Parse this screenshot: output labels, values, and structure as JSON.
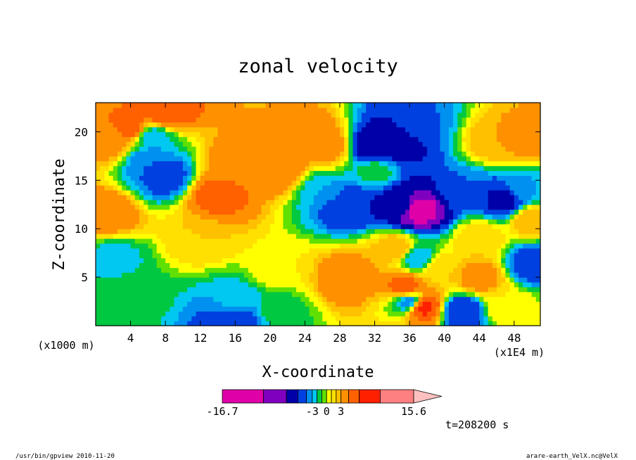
{
  "chart_data": {
    "type": "heatmap",
    "title": "zonal velocity",
    "xlabel": "X-coordinate",
    "ylabel": "Z-coordinate",
    "x_unit": "(x1E4 m)",
    "y_unit": "(x1000 m)",
    "x_ticks": [
      4,
      8,
      12,
      16,
      20,
      24,
      28,
      32,
      36,
      40,
      44,
      48
    ],
    "y_ticks": [
      5,
      10,
      15,
      20
    ],
    "xlim": [
      0,
      51
    ],
    "ylim": [
      0,
      23
    ],
    "colorbar": {
      "labels": [
        {
          "text": "-16.7",
          "value": -16.7
        },
        {
          "text": "-3",
          "value": -3
        },
        {
          "text": "0",
          "value": 0
        },
        {
          "text": "3",
          "value": 3
        },
        {
          "text": "15.6",
          "value": 15.6
        }
      ],
      "bins": [
        {
          "from": -16.7,
          "to": -12,
          "color": "#e000a8"
        },
        {
          "from": -12,
          "to": -9,
          "color": "#8000c0"
        },
        {
          "from": -9,
          "to": -6,
          "color": "#0000a8"
        },
        {
          "from": -6,
          "to": -4,
          "color": "#0040e0"
        },
        {
          "from": -4,
          "to": -3,
          "color": "#0090f0"
        },
        {
          "from": -3,
          "to": -2,
          "color": "#00c8f0"
        },
        {
          "from": -2,
          "to": -1,
          "color": "#00c840"
        },
        {
          "from": -1,
          "to": 0,
          "color": "#60e000"
        },
        {
          "from": 0,
          "to": 1,
          "color": "#ffff00"
        },
        {
          "from": 1,
          "to": 2,
          "color": "#ffe000"
        },
        {
          "from": 2,
          "to": 3,
          "color": "#ffc000"
        },
        {
          "from": 3,
          "to": 5,
          "color": "#ff9000"
        },
        {
          "from": 5,
          "to": 7,
          "color": "#ff6000"
        },
        {
          "from": 7,
          "to": 10,
          "color": "#ff2000"
        },
        {
          "from": 10,
          "to": 15.6,
          "color": "#ff8080"
        }
      ],
      "overflow_color": "#ffc0c0"
    },
    "features": [
      {
        "x": 4,
        "z": 20.5,
        "value": 6
      },
      {
        "x": 8,
        "z": 22,
        "value": 7
      },
      {
        "x": 1.5,
        "z": 19,
        "value": 4
      },
      {
        "x": 6,
        "z": 17,
        "value": -4
      },
      {
        "x": 8,
        "z": 15.5,
        "value": -5
      },
      {
        "x": 6.5,
        "z": 19.5,
        "value": -3
      },
      {
        "x": 14,
        "z": 13.5,
        "value": 6
      },
      {
        "x": 16,
        "z": 17,
        "value": 4
      },
      {
        "x": 21,
        "z": 16,
        "value": 5
      },
      {
        "x": 1,
        "z": 11.5,
        "value": 5
      },
      {
        "x": 12,
        "z": 9,
        "value": 2
      },
      {
        "x": 21,
        "z": 6,
        "value": 1
      },
      {
        "x": 2,
        "z": 7,
        "value": -2.5
      },
      {
        "x": 4,
        "z": 3.5,
        "value": -1.5
      },
      {
        "x": 16,
        "z": 2.5,
        "value": -2.5
      },
      {
        "x": 16,
        "z": 0.8,
        "value": -6
      },
      {
        "x": 21,
        "z": 1.5,
        "value": -1.5
      },
      {
        "x": 25,
        "z": 19.5,
        "value": 5
      },
      {
        "x": 27,
        "z": 18.5,
        "value": 4
      },
      {
        "x": 31.5,
        "z": 18.5,
        "value": -8
      },
      {
        "x": 34,
        "z": 19,
        "value": -9
      },
      {
        "x": 37,
        "z": 21,
        "value": -4
      },
      {
        "x": 29,
        "z": 12.5,
        "value": -6
      },
      {
        "x": 26,
        "z": 14,
        "value": -3
      },
      {
        "x": 35,
        "z": 12.5,
        "value": -7
      },
      {
        "x": 37,
        "z": 12,
        "value": -14
      },
      {
        "x": 29,
        "z": 5,
        "value": 5
      },
      {
        "x": 34.5,
        "z": 8,
        "value": 3
      },
      {
        "x": 35.5,
        "z": 4,
        "value": 6
      },
      {
        "x": 37.5,
        "z": 2,
        "value": 8
      },
      {
        "x": 39.5,
        "z": 6,
        "value": 2
      },
      {
        "x": 42,
        "z": 1.5,
        "value": -6
      },
      {
        "x": 44,
        "z": 5,
        "value": 4
      },
      {
        "x": 44,
        "z": 9,
        "value": 2
      },
      {
        "x": 42,
        "z": 14,
        "value": -4
      },
      {
        "x": 47,
        "z": 13,
        "value": -7
      },
      {
        "x": 49,
        "z": 14,
        "value": -3
      },
      {
        "x": 46,
        "z": 19,
        "value": 3
      },
      {
        "x": 49.5,
        "z": 19.5,
        "value": 4
      },
      {
        "x": 50,
        "z": 11,
        "value": 3
      },
      {
        "x": 50,
        "z": 6.5,
        "value": -5
      },
      {
        "x": 47,
        "z": 2,
        "value": 1
      },
      {
        "x": 32,
        "z": 16,
        "value": -1.5
      },
      {
        "x": 37,
        "z": 7,
        "value": -3
      },
      {
        "x": 36,
        "z": 2.5,
        "value": -4
      }
    ]
  },
  "time_label": "t=208200 s",
  "footer_left": "/usr/bin/gpview   2010-11-20",
  "footer_right": "arare-earth_VelX.nc@VelX"
}
